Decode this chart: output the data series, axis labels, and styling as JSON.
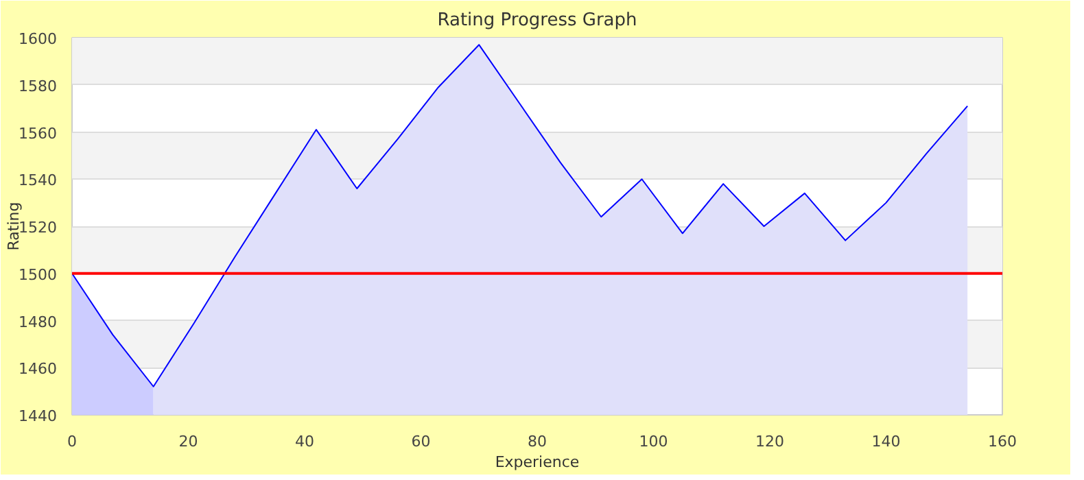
{
  "chart_data": {
    "type": "area",
    "title": "Rating Progress Graph",
    "xlabel": "Experience",
    "ylabel": "Rating",
    "xlim": [
      0,
      160
    ],
    "xticks": [
      0,
      20,
      40,
      60,
      80,
      100,
      120,
      140,
      160
    ],
    "ylim": [
      1440,
      1600
    ],
    "yticks": [
      1440,
      1460,
      1480,
      1500,
      1520,
      1540,
      1560,
      1580,
      1600
    ],
    "grid": "y",
    "series": [
      {
        "color": "#ccccff",
        "x": [
          0,
          7,
          14
        ],
        "values": [
          1500,
          1474,
          1452
        ]
      },
      {
        "color": "#e0e0fa",
        "x": [
          14,
          21,
          28,
          35,
          42,
          49,
          56,
          63,
          70,
          77,
          84,
          91,
          98,
          105,
          112,
          119,
          126,
          133,
          140,
          147,
          154
        ],
        "values": [
          1452,
          1479,
          1507,
          1534,
          1561,
          1536,
          1557,
          1579,
          1597,
          1572,
          1547,
          1524,
          1540,
          1517,
          1538,
          1520,
          1534,
          1514,
          1530,
          1551,
          1571
        ]
      },
      {
        "type": "line",
        "color": "#0000ff",
        "x": [
          0,
          7,
          14,
          21,
          28,
          35,
          42,
          49,
          56,
          63,
          70,
          77,
          84,
          91,
          98,
          105,
          112,
          119,
          126,
          133,
          140,
          147,
          154
        ],
        "values": [
          1500,
          1474,
          1452,
          1479,
          1507,
          1534,
          1561,
          1536,
          1557,
          1579,
          1597,
          1572,
          1547,
          1524,
          1540,
          1517,
          1538,
          1520,
          1534,
          1514,
          1530,
          1551,
          1571
        ]
      }
    ],
    "ref_lines": [
      {
        "axis": "y",
        "value": 1500,
        "color": "#ff0000"
      }
    ]
  }
}
